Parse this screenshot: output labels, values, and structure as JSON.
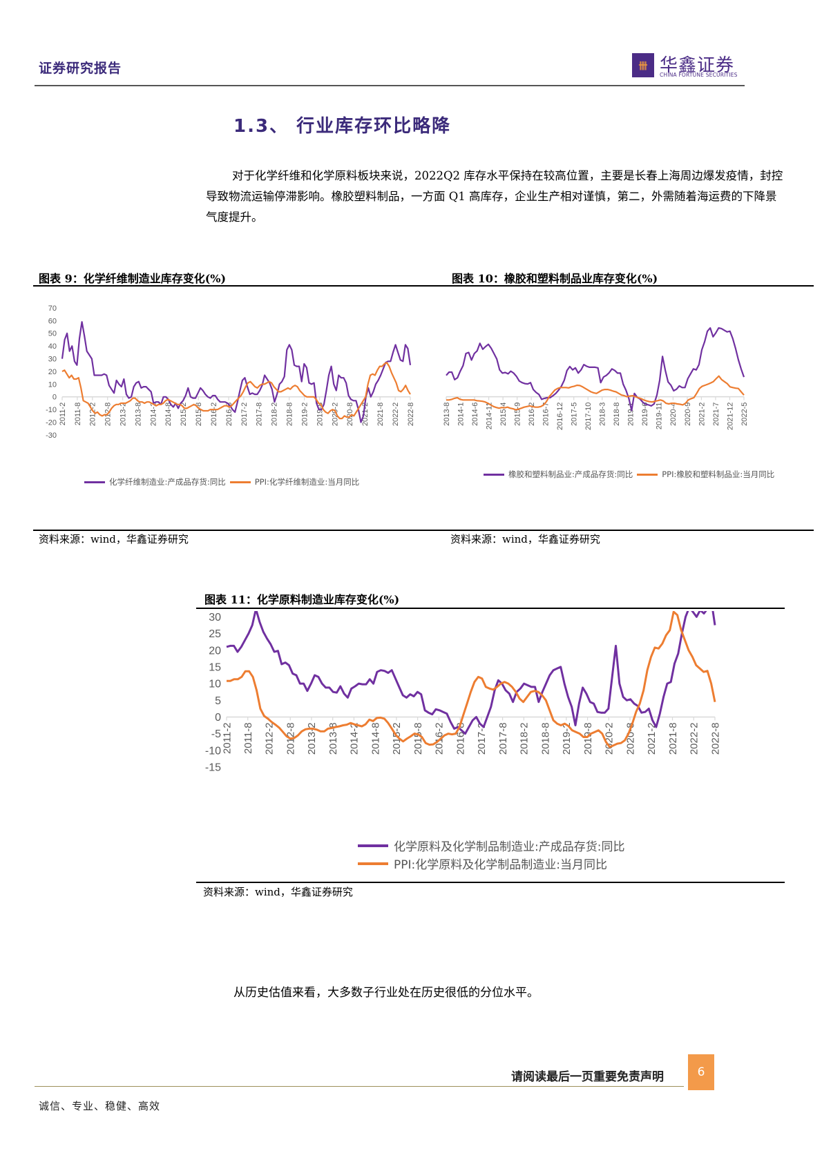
{
  "header": {
    "report_type": "证券研究报告",
    "logo_cn": "华鑫证券",
    "logo_en": "CHINA FORTUNE SECURITIES",
    "logo_mark": "卌"
  },
  "section": {
    "title": "1.3、 行业库存环比略降",
    "paragraph": "对于化学纤维和化学原料板块来说，2022Q2 库存水平保持在较高位置，主要是长春上海周边爆发疫情，封控导致物流运输停滞影响。橡胶塑料制品，一方面 Q1 高库存，企业生产相对谨慎，第二，外需随着海运费的下降景气度提升。"
  },
  "figures": {
    "fig9": {
      "title": "图表 9：化学纤维制造业库存变化(%)",
      "source": "资料来源：wind，华鑫证券研究"
    },
    "fig10": {
      "title": "图表 10：橡胶和塑料制品业库存变化(%)",
      "source": "资料来源：wind，华鑫证券研究"
    },
    "fig11": {
      "title": "图表 11：化学原料制造业库存变化(%)",
      "source": "资料来源：wind，华鑫证券研究"
    }
  },
  "closing": "从历史估值来看，大多数子行业处在历史很低的分位水平。",
  "footer": {
    "disclaimer": "请阅读最后一页重要免责声明",
    "page_number": "6",
    "motto": "诚信、专业、稳健、高效"
  },
  "colors": {
    "purple": "#7030a0",
    "orange": "#ed7d31",
    "brand": "#4b2c86",
    "page_badge": "#f39a4a"
  },
  "chart_data": [
    {
      "id": "fig9",
      "type": "line",
      "title": "图表 9：化学纤维制造业库存变化(%)",
      "ylim": [
        -30,
        70
      ],
      "yticks": [
        70,
        60,
        50,
        40,
        30,
        20,
        10,
        0,
        -10,
        -20,
        -30
      ],
      "x_tick_labels": [
        "2011-2",
        "2011-8",
        "2012-2",
        "2012-8",
        "2013-2",
        "2013-8",
        "2014-2",
        "2014-8",
        "2015-2",
        "2015-8",
        "2016-2",
        "2016-8",
        "2017-2",
        "2017-8",
        "2018-2",
        "2018-8",
        "2019-2",
        "2019-8",
        "2020-2",
        "2020-8",
        "2021-2",
        "2021-8",
        "2022-2",
        "2022-8"
      ],
      "grid": false,
      "legend_position": "bottom",
      "series": [
        {
          "name": "化学纤维制造业:产成品存货:同比",
          "color": "#7030a0",
          "values": [
            30,
            45,
            50,
            36,
            40,
            28,
            25,
            46,
            59,
            48,
            36,
            33,
            30,
            17,
            17,
            17,
            17,
            18,
            17,
            9,
            6,
            3,
            13,
            10,
            8,
            14,
            2,
            -1,
            0,
            8,
            11,
            12,
            7,
            8,
            8,
            6,
            4,
            -5,
            -4,
            -4,
            -6,
            0,
            0,
            -2,
            -6,
            -8,
            -5,
            -9,
            -5,
            -3,
            1,
            7,
            0,
            -1,
            -1,
            3,
            7,
            5,
            2,
            0,
            -1,
            1,
            1,
            -2,
            -4,
            -4,
            -4,
            -5,
            -7,
            -10,
            -12,
            -4,
            5,
            13,
            15,
            8,
            2,
            3,
            2,
            2,
            5,
            9,
            17,
            14,
            11,
            6,
            -4,
            2,
            10,
            12,
            16,
            37,
            41,
            37,
            25,
            24,
            24,
            12,
            26,
            23,
            11,
            10,
            11,
            -5,
            -10,
            -10,
            -6,
            5,
            17,
            24,
            10,
            5,
            17,
            15,
            15,
            11,
            1,
            -2,
            -3,
            -3,
            -10,
            -20,
            -15,
            0,
            7,
            0,
            4,
            10,
            13,
            17,
            22,
            27,
            28,
            28,
            35,
            41,
            35,
            29,
            28,
            41,
            38,
            25
          ]
        },
        {
          "name": "PPI:化学纤维制造业:当月同比",
          "color": "#ed7d31",
          "values": [
            20,
            21,
            18,
            15,
            17,
            14,
            14,
            15,
            7,
            -3,
            -4,
            -5,
            -8,
            -11,
            -13,
            -12,
            -14,
            -15,
            -14,
            -14,
            -12,
            -9,
            -7,
            -6,
            -6,
            -5,
            -5,
            -5,
            -4,
            -3,
            -1,
            -1,
            -3,
            -4,
            -4,
            -5,
            -4,
            -4,
            -5,
            -6,
            -7,
            -6,
            -6,
            -5,
            -3,
            -2,
            -3,
            -4,
            -5,
            -6,
            -6,
            -7,
            -9,
            -9,
            -8,
            -7,
            -6,
            -7,
            -9,
            -10,
            -11,
            -11,
            -11,
            -10,
            -10,
            -10,
            -10,
            -9,
            -8,
            -7,
            -7,
            -8,
            -7,
            -5,
            -3,
            -1,
            1,
            4,
            8,
            11,
            12,
            10,
            8,
            7,
            9,
            10,
            10,
            11,
            12,
            11,
            8,
            6,
            4,
            4,
            5,
            6,
            7,
            6,
            8,
            9,
            8,
            5,
            3,
            1,
            0,
            0,
            0,
            0,
            -2,
            -5,
            -6,
            -10,
            -12,
            -13,
            -11,
            -10,
            -11,
            -15,
            -17,
            -17,
            -15,
            -16,
            -16,
            -14,
            -15,
            -12,
            -9,
            -6,
            -3,
            0,
            10,
            17,
            18,
            17,
            21,
            24,
            24,
            26,
            27,
            24,
            19,
            15,
            11,
            5,
            4,
            6,
            9,
            5,
            2
          ]
        }
      ]
    },
    {
      "id": "fig10",
      "type": "line",
      "title": "图表 10：橡胶和塑料制品业库存变化(%)",
      "ylim": [
        -10,
        25
      ],
      "yticks": [
        25,
        20,
        15,
        10,
        5,
        0,
        -5,
        -10
      ],
      "x_tick_labels": [
        "2013-8",
        "2014-1",
        "2014-6",
        "2014-11",
        "2015-4",
        "2015-9",
        "2016-2",
        "2016-7",
        "2016-12",
        "2017-5",
        "2017-10",
        "2018-3",
        "2018-8",
        "2019-1",
        "2019-6",
        "2019-11",
        "2020-4",
        "2020-9",
        "2021-2",
        "2021-7",
        "2021-12",
        "2022-5"
      ],
      "grid": false,
      "legend_position": "bottom",
      "series": [
        {
          "name": "橡胶和塑料制品业:产成品存货:同比",
          "color": "#7030a0",
          "values": [
            6.5,
            7.5,
            7.5,
            5.2,
            5.8,
            7.8,
            9.5,
            13.2,
            13.5,
            11.2,
            13.2,
            14,
            16.3,
            14.5,
            15.3,
            16,
            14.8,
            13.2,
            11.5,
            8.2,
            7.2,
            7.4,
            7,
            7.8,
            7.2,
            6.2,
            4.8,
            4.3,
            4,
            3.9,
            4.3,
            2.2,
            1.3,
            0.7,
            -0.8,
            -0.5,
            -0.3,
            -0.3,
            0.3,
            1,
            2,
            3.2,
            5,
            8,
            9.2,
            8.2,
            8.8,
            7.2,
            8.2,
            9.8,
            9.3,
            9,
            9,
            9,
            8.8,
            4.3,
            6,
            6.5,
            7.3,
            8.5,
            8,
            7.2,
            7.2,
            3.8,
            2,
            -0.5,
            -4.2,
            1,
            -0.2,
            -0.7,
            -1.7,
            -2.3,
            -2.5,
            -2.8,
            -2.2,
            0.5,
            5,
            12.3,
            8,
            4.5,
            3.5,
            1.8,
            2.3,
            3.3,
            2.8,
            2.8,
            5.5,
            7,
            8.5,
            8.2,
            9.8,
            14.3,
            16.8,
            20,
            21,
            18.3,
            19.5,
            21,
            20.8,
            20.3,
            19.8,
            20,
            17.8,
            14.8,
            11.3,
            8.5,
            6
          ]
        },
        {
          "name": "PPI:橡胶和塑料制品业:当月同比",
          "color": "#ed7d31",
          "values": [
            -1,
            -1,
            -0.8,
            -0.5,
            -0.3,
            -0.8,
            -1,
            -1,
            -1,
            -1,
            -1,
            -1.2,
            -1.3,
            -1.4,
            -1.6,
            -2,
            -2.5,
            -3,
            -3.3,
            -3.5,
            -3.3,
            -3.4,
            -3.2,
            -3.5,
            -3.7,
            -4,
            -3.8,
            -3.5,
            -3.2,
            -3,
            -2.8,
            -3,
            -3.2,
            -3.2,
            -3,
            -2.5,
            -1.5,
            0,
            1,
            2,
            2.5,
            2.8,
            2.8,
            2.8,
            2.7,
            3,
            3.2,
            3.5,
            3.4,
            3,
            2.5,
            2,
            1.5,
            1.2,
            1,
            1.5,
            2,
            2.2,
            2.2,
            2,
            1.7,
            1.5,
            1,
            0.5,
            0.3,
            0,
            0.2,
            0.3,
            0,
            -0.3,
            -0.6,
            -1,
            -1.3,
            -1.5,
            -1.6,
            -1.4,
            -1.2,
            -1,
            -1.3,
            -2,
            -2.2,
            -2,
            -2,
            -2.2,
            -2.3,
            -2.5,
            -2,
            -1,
            -0.6,
            -0.3,
            1,
            2.5,
            3.2,
            3.5,
            3.8,
            4.2,
            4.6,
            5.5,
            6.3,
            5.2,
            4.6,
            4,
            3,
            2.8,
            2.6,
            2.5,
            1.5,
            0.5
          ]
        }
      ]
    },
    {
      "id": "fig11",
      "type": "line",
      "title": "图表 11：化学原料制造业库存变化(%)",
      "ylim": [
        -15,
        40
      ],
      "yticks": [
        40,
        35,
        30,
        25,
        20,
        15,
        10,
        5,
        0,
        -5,
        -10,
        -15
      ],
      "x_tick_labels": [
        "2011-2",
        "2011-8",
        "2012-2",
        "2012-8",
        "2013-2",
        "2013-8",
        "2014-2",
        "2014-8",
        "2015-2",
        "2015-8",
        "2016-2",
        "2016-8",
        "2017-2",
        "2017-8",
        "2018-2",
        "2018-8",
        "2019-2",
        "2019-8",
        "2020-2",
        "2020-8",
        "2021-2",
        "2021-8",
        "2022-2",
        "2022-8"
      ],
      "grid": false,
      "legend_position": "bottom",
      "series": [
        {
          "name": "化学原料及化学制品制造业:产成品存货:同比",
          "color": "#7030a0",
          "values": [
            21,
            21.3,
            21.3,
            19.5,
            21,
            23,
            25,
            27.5,
            32.3,
            28.5,
            25.5,
            23.5,
            21.8,
            19.5,
            19.8,
            15.8,
            16.3,
            15.5,
            13,
            12.5,
            10,
            10,
            7.8,
            10,
            12.5,
            12,
            10,
            8.8,
            8.8,
            7.5,
            7.3,
            9.2,
            7,
            5.8,
            8.5,
            9.2,
            10,
            9.8,
            9.8,
            11.3,
            10,
            13.5,
            14,
            13.8,
            13.2,
            14,
            11.5,
            9,
            6.5,
            5.8,
            6.8,
            6.2,
            7.5,
            6.8,
            2,
            1.3,
            0.8,
            2.3,
            2,
            1.5,
            1,
            -1.5,
            -3.5,
            -3,
            -4,
            -5,
            -3,
            -1,
            0,
            -2,
            -3,
            0,
            3,
            8,
            11,
            10,
            8,
            7,
            4.5,
            7.5,
            8.5,
            10,
            9.5,
            9,
            9,
            4.5,
            7.5,
            10,
            12.5,
            14,
            14.5,
            15,
            10,
            6,
            3,
            -2.5,
            4,
            8.8,
            7,
            4.5,
            4,
            1.5,
            1.3,
            1.3,
            2.5,
            12,
            21.3,
            10,
            6,
            5,
            5.3,
            4,
            3.3,
            1.3,
            1.5,
            2.5,
            -1,
            -3,
            1,
            6,
            10,
            10.5,
            16,
            19,
            25,
            30,
            32.8,
            31.5,
            30,
            32,
            31,
            32.5,
            35,
            27.5
          ]
        },
        {
          "name": "PPI:化学原料及化学制品制造业:当月同比",
          "color": "#ed7d31",
          "values": [
            10.8,
            10.8,
            11.3,
            11.3,
            12,
            13.7,
            13.7,
            12,
            8,
            2.5,
            0.3,
            -0.5,
            -1.5,
            -2.3,
            -3.2,
            -4.5,
            -5.8,
            -6.5,
            -6.3,
            -5.5,
            -4.3,
            -3.7,
            -3.5,
            -3.5,
            -3.8,
            -4.3,
            -4.3,
            -3.5,
            -3.3,
            -3,
            -2.8,
            -2.5,
            -2.3,
            -1.8,
            -2.2,
            -2.5,
            -2.8,
            -2.2,
            -0.8,
            -1.2,
            -0.3,
            -0.2,
            -0.5,
            -1.8,
            -3.5,
            -5.3,
            -6.5,
            -7.3,
            -6.5,
            -5.8,
            -5,
            -5.2,
            -6,
            -7.8,
            -8.3,
            -8.2,
            -7.5,
            -6.5,
            -5.5,
            -5,
            -5.2,
            -5,
            -3,
            0.5,
            4,
            7.5,
            10.5,
            12,
            11.5,
            9,
            8.5,
            8.2,
            9,
            10,
            10.5,
            10,
            9,
            7.5,
            5.5,
            4.5,
            6,
            7.5,
            7.8,
            7.5,
            6.5,
            5,
            2,
            -1,
            -2,
            -2.5,
            -2,
            -2.7,
            -4,
            -4.5,
            -5,
            -6,
            -6,
            -5,
            -4.5,
            -4,
            -5,
            -7.5,
            -9,
            -8.5,
            -8,
            -7.8,
            -7,
            -5,
            -2,
            1.5,
            4,
            8,
            14,
            18,
            20.8,
            20.5,
            22,
            24.5,
            26,
            31.5,
            30.5,
            26,
            23,
            20,
            18,
            15.5,
            14.5,
            13.5,
            13.8,
            10,
            4.5
          ]
        }
      ]
    }
  ]
}
